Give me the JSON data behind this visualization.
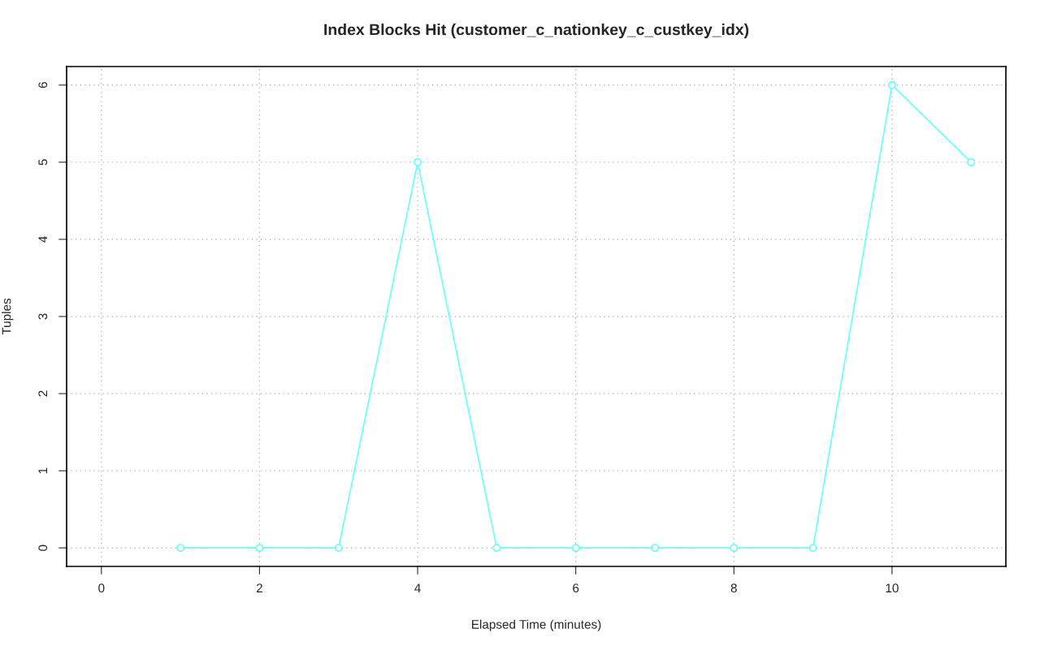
{
  "chart_data": {
    "type": "line",
    "title": "Index Blocks Hit (customer_c_nationkey_c_custkey_idx)",
    "xlabel": "Elapsed Time (minutes)",
    "ylabel": "Tuples",
    "x": [
      1,
      2,
      3,
      4,
      5,
      6,
      7,
      8,
      9,
      10,
      11
    ],
    "series": [
      {
        "color": "#66ffff",
        "values": [
          0,
          0,
          0,
          5,
          0,
          0,
          0,
          0,
          0,
          6,
          5
        ]
      }
    ],
    "xlim": [
      -0.44,
      11.44
    ],
    "ylim": [
      -0.24,
      6.24
    ],
    "xticks": [
      0,
      2,
      4,
      6,
      8,
      10
    ],
    "yticks": [
      0,
      1,
      2,
      3,
      4,
      5,
      6
    ],
    "grid": true,
    "marker": "circle",
    "line_style": "solid",
    "legend": false
  }
}
